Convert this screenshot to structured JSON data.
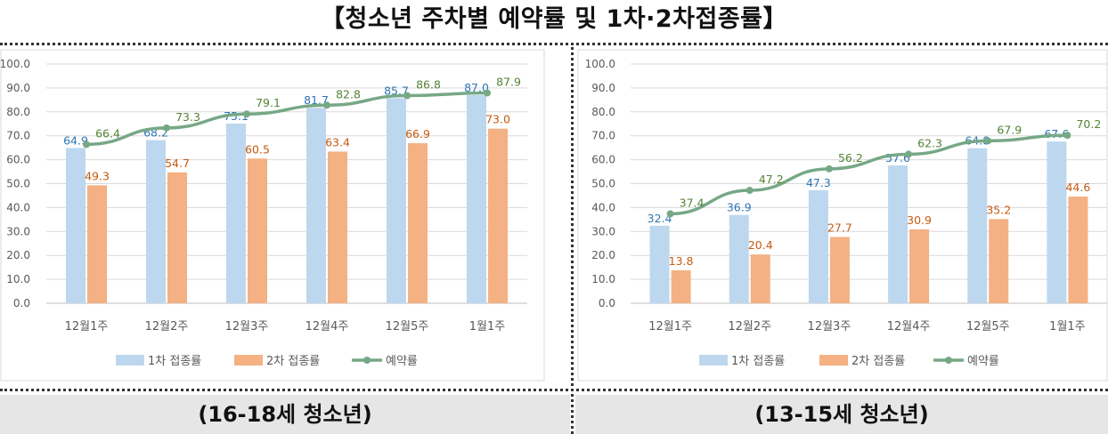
{
  "title": "【청소년 주차별 예약률 및 1차·2차접종률】",
  "panels": [
    {
      "subtitle": "(16-18세 청소년)"
    },
    {
      "subtitle": "(13-15세 청소년)"
    }
  ],
  "colors": {
    "dose1": "#bdd7ee",
    "dose2": "#f4b183",
    "reservation": "#76a886",
    "dose1_label": "#2e75b6",
    "dose2_label": "#c55a11",
    "reservation_label": "#548235"
  },
  "chart_data": [
    {
      "type": "bar",
      "categories": [
        "12월1주",
        "12월2주",
        "12월3주",
        "12월4주",
        "12월5주",
        "1월1주"
      ],
      "ylim": [
        0,
        100
      ],
      "yticks": [
        "0.0",
        "10.0",
        "20.0",
        "30.0",
        "40.0",
        "50.0",
        "60.0",
        "70.0",
        "80.0",
        "90.0",
        "100.0"
      ],
      "series": [
        {
          "name": "1차 접종률",
          "type": "bar",
          "values": [
            64.9,
            68.2,
            75.1,
            81.7,
            85.7,
            87.0
          ]
        },
        {
          "name": "2차 접종률",
          "type": "bar",
          "values": [
            49.3,
            54.7,
            60.5,
            63.4,
            66.9,
            73.0
          ]
        },
        {
          "name": "예약률",
          "type": "line",
          "values": [
            66.4,
            73.3,
            79.1,
            82.8,
            86.8,
            87.9
          ]
        }
      ],
      "legend": "bottom"
    },
    {
      "type": "bar",
      "categories": [
        "12월1주",
        "12월2주",
        "12월3주",
        "12월4주",
        "12월5주",
        "1월1주"
      ],
      "ylim": [
        0,
        100
      ],
      "yticks": [
        "0.0",
        "10.0",
        "20.0",
        "30.0",
        "40.0",
        "50.0",
        "60.0",
        "70.0",
        "80.0",
        "90.0",
        "100.0"
      ],
      "series": [
        {
          "name": "1차 접종률",
          "type": "bar",
          "values": [
            32.4,
            36.9,
            47.3,
            57.6,
            64.8,
            67.6
          ]
        },
        {
          "name": "2차 접종률",
          "type": "bar",
          "values": [
            13.8,
            20.4,
            27.7,
            30.9,
            35.2,
            44.6
          ]
        },
        {
          "name": "예약률",
          "type": "line",
          "values": [
            37.4,
            47.2,
            56.2,
            62.3,
            67.9,
            70.2
          ]
        }
      ],
      "legend": "bottom"
    }
  ]
}
